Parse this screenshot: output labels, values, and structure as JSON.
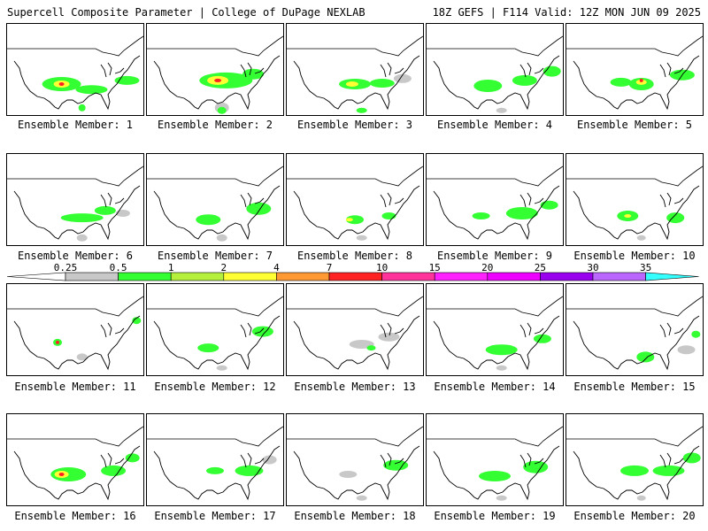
{
  "header": {
    "left": "Supercell Composite Parameter | College of DuPage NEXLAB",
    "right": "18Z GEFS | F114 Valid: 12Z MON JUN 09 2025"
  },
  "members": [
    {
      "label": "Ensemble Member: 1",
      "blobs": [
        [
          0.4,
          0.66,
          22,
          8,
          "#33ff33"
        ],
        [
          0.4,
          0.66,
          9,
          4,
          "#ffff33"
        ],
        [
          0.4,
          0.66,
          3,
          2,
          "#ff2222"
        ],
        [
          0.62,
          0.72,
          18,
          5,
          "#33ff33"
        ],
        [
          0.88,
          0.62,
          14,
          5,
          "#33ff33"
        ],
        [
          0.55,
          0.92,
          4,
          4,
          "#33ff33"
        ]
      ]
    },
    {
      "label": "Ensemble Member: 2",
      "blobs": [
        [
          0.58,
          0.62,
          30,
          9,
          "#33ff33"
        ],
        [
          0.52,
          0.62,
          12,
          5,
          "#ffff33"
        ],
        [
          0.52,
          0.62,
          4,
          2,
          "#ff2222"
        ],
        [
          0.78,
          0.55,
          12,
          6,
          "#33ff33"
        ],
        [
          0.55,
          0.92,
          8,
          6,
          "#c8c8c8"
        ],
        [
          0.55,
          0.95,
          5,
          4,
          "#33ff33"
        ]
      ]
    },
    {
      "label": "Ensemble Member: 3",
      "blobs": [
        [
          0.5,
          0.66,
          18,
          6,
          "#33ff33"
        ],
        [
          0.48,
          0.66,
          7,
          3,
          "#ffff33"
        ],
        [
          0.7,
          0.65,
          14,
          5,
          "#33ff33"
        ],
        [
          0.85,
          0.6,
          10,
          5,
          "#c8c8c8"
        ],
        [
          0.55,
          0.95,
          6,
          3,
          "#33ff33"
        ]
      ]
    },
    {
      "label": "Ensemble Member: 4",
      "blobs": [
        [
          0.45,
          0.68,
          16,
          7,
          "#33ff33"
        ],
        [
          0.72,
          0.62,
          14,
          6,
          "#33ff33"
        ],
        [
          0.92,
          0.52,
          10,
          6,
          "#33ff33"
        ],
        [
          0.55,
          0.95,
          6,
          3,
          "#c8c8c8"
        ]
      ]
    },
    {
      "label": "Ensemble Member: 5",
      "blobs": [
        [
          0.55,
          0.66,
          14,
          7,
          "#33ff33"
        ],
        [
          0.55,
          0.64,
          6,
          3,
          "#ffff33"
        ],
        [
          0.55,
          0.62,
          2,
          2,
          "#ff2222"
        ],
        [
          0.4,
          0.64,
          12,
          5,
          "#33ff33"
        ],
        [
          0.85,
          0.56,
          14,
          6,
          "#33ff33"
        ]
      ]
    },
    {
      "label": "Ensemble Member: 6",
      "blobs": [
        [
          0.55,
          0.7,
          24,
          5,
          "#33ff33"
        ],
        [
          0.72,
          0.62,
          12,
          5,
          "#33ff33"
        ],
        [
          0.85,
          0.65,
          8,
          4,
          "#c8c8c8"
        ],
        [
          0.55,
          0.92,
          6,
          4,
          "#c8c8c8"
        ]
      ]
    },
    {
      "label": "Ensemble Member: 7",
      "blobs": [
        [
          0.45,
          0.72,
          14,
          6,
          "#33ff33"
        ],
        [
          0.82,
          0.6,
          14,
          7,
          "#33ff33"
        ],
        [
          0.55,
          0.92,
          6,
          4,
          "#c8c8c8"
        ]
      ]
    },
    {
      "label": "Ensemble Member: 8",
      "blobs": [
        [
          0.5,
          0.72,
          10,
          5,
          "#33ff33"
        ],
        [
          0.46,
          0.72,
          4,
          2,
          "#ffff33"
        ],
        [
          0.75,
          0.68,
          8,
          4,
          "#33ff33"
        ],
        [
          0.55,
          0.92,
          6,
          3,
          "#c8c8c8"
        ]
      ]
    },
    {
      "label": "Ensemble Member: 9",
      "blobs": [
        [
          0.4,
          0.68,
          10,
          4,
          "#33ff33"
        ],
        [
          0.7,
          0.65,
          18,
          7,
          "#33ff33"
        ],
        [
          0.9,
          0.56,
          10,
          5,
          "#33ff33"
        ]
      ]
    },
    {
      "label": "Ensemble Member: 10",
      "blobs": [
        [
          0.45,
          0.68,
          12,
          6,
          "#33ff33"
        ],
        [
          0.45,
          0.68,
          4,
          2,
          "#ffff33"
        ],
        [
          0.8,
          0.7,
          10,
          6,
          "#33ff33"
        ],
        [
          0.55,
          0.92,
          5,
          3,
          "#c8c8c8"
        ]
      ]
    },
    {
      "label": "Ensemble Member: 11",
      "blobs": [
        [
          0.37,
          0.64,
          5,
          4,
          "#33ff33"
        ],
        [
          0.37,
          0.64,
          2,
          2,
          "#ff2222"
        ],
        [
          0.55,
          0.8,
          6,
          4,
          "#c8c8c8"
        ],
        [
          0.95,
          0.4,
          5,
          4,
          "#33ff33"
        ]
      ]
    },
    {
      "label": "Ensemble Member: 12",
      "blobs": [
        [
          0.45,
          0.7,
          12,
          5,
          "#33ff33"
        ],
        [
          0.85,
          0.52,
          12,
          6,
          "#33ff33"
        ],
        [
          0.55,
          0.92,
          6,
          3,
          "#c8c8c8"
        ]
      ]
    },
    {
      "label": "Ensemble Member: 13",
      "blobs": [
        [
          0.55,
          0.66,
          14,
          5,
          "#c8c8c8"
        ],
        [
          0.75,
          0.58,
          12,
          5,
          "#c8c8c8"
        ],
        [
          0.62,
          0.7,
          5,
          3,
          "#33ff33"
        ]
      ]
    },
    {
      "label": "Ensemble Member: 14",
      "blobs": [
        [
          0.55,
          0.72,
          18,
          6,
          "#33ff33"
        ],
        [
          0.85,
          0.6,
          10,
          5,
          "#33ff33"
        ],
        [
          0.55,
          0.92,
          6,
          3,
          "#c8c8c8"
        ]
      ]
    },
    {
      "label": "Ensemble Member: 15",
      "blobs": [
        [
          0.58,
          0.8,
          10,
          6,
          "#33ff33"
        ],
        [
          0.88,
          0.72,
          10,
          5,
          "#c8c8c8"
        ],
        [
          0.95,
          0.55,
          5,
          4,
          "#33ff33"
        ]
      ]
    },
    {
      "label": "Ensemble Member: 16",
      "blobs": [
        [
          0.45,
          0.66,
          20,
          8,
          "#33ff33"
        ],
        [
          0.4,
          0.66,
          8,
          4,
          "#ffff33"
        ],
        [
          0.4,
          0.66,
          3,
          2,
          "#ff2222"
        ],
        [
          0.78,
          0.62,
          14,
          6,
          "#33ff33"
        ],
        [
          0.92,
          0.48,
          8,
          5,
          "#33ff33"
        ]
      ]
    },
    {
      "label": "Ensemble Member: 17",
      "blobs": [
        [
          0.5,
          0.62,
          10,
          4,
          "#33ff33"
        ],
        [
          0.75,
          0.62,
          16,
          6,
          "#33ff33"
        ],
        [
          0.9,
          0.5,
          8,
          5,
          "#c8c8c8"
        ]
      ]
    },
    {
      "label": "Ensemble Member: 18",
      "blobs": [
        [
          0.45,
          0.66,
          10,
          4,
          "#c8c8c8"
        ],
        [
          0.8,
          0.56,
          14,
          6,
          "#33ff33"
        ],
        [
          0.55,
          0.92,
          6,
          3,
          "#c8c8c8"
        ]
      ]
    },
    {
      "label": "Ensemble Member: 19",
      "blobs": [
        [
          0.5,
          0.68,
          18,
          6,
          "#33ff33"
        ],
        [
          0.8,
          0.58,
          14,
          7,
          "#33ff33"
        ],
        [
          0.55,
          0.92,
          6,
          3,
          "#c8c8c8"
        ]
      ]
    },
    {
      "label": "Ensemble Member: 20",
      "blobs": [
        [
          0.5,
          0.62,
          16,
          6,
          "#33ff33"
        ],
        [
          0.75,
          0.62,
          18,
          6,
          "#33ff33"
        ],
        [
          0.92,
          0.48,
          10,
          6,
          "#33ff33"
        ],
        [
          0.55,
          0.92,
          5,
          3,
          "#c8c8c8"
        ]
      ]
    }
  ],
  "colorbar": {
    "labels": [
      "0.25",
      "0.5",
      "1",
      "2",
      "4",
      "7",
      "10",
      "15",
      "20",
      "25",
      "30",
      "35"
    ],
    "colors": [
      "#ffffff",
      "#c8c8c8",
      "#33ff33",
      "#b4f03c",
      "#ffff33",
      "#ff9933",
      "#ff2222",
      "#ff3399",
      "#ff22ff",
      "#ee00ff",
      "#9900ee",
      "#bb66ff",
      "#33ffff"
    ]
  }
}
